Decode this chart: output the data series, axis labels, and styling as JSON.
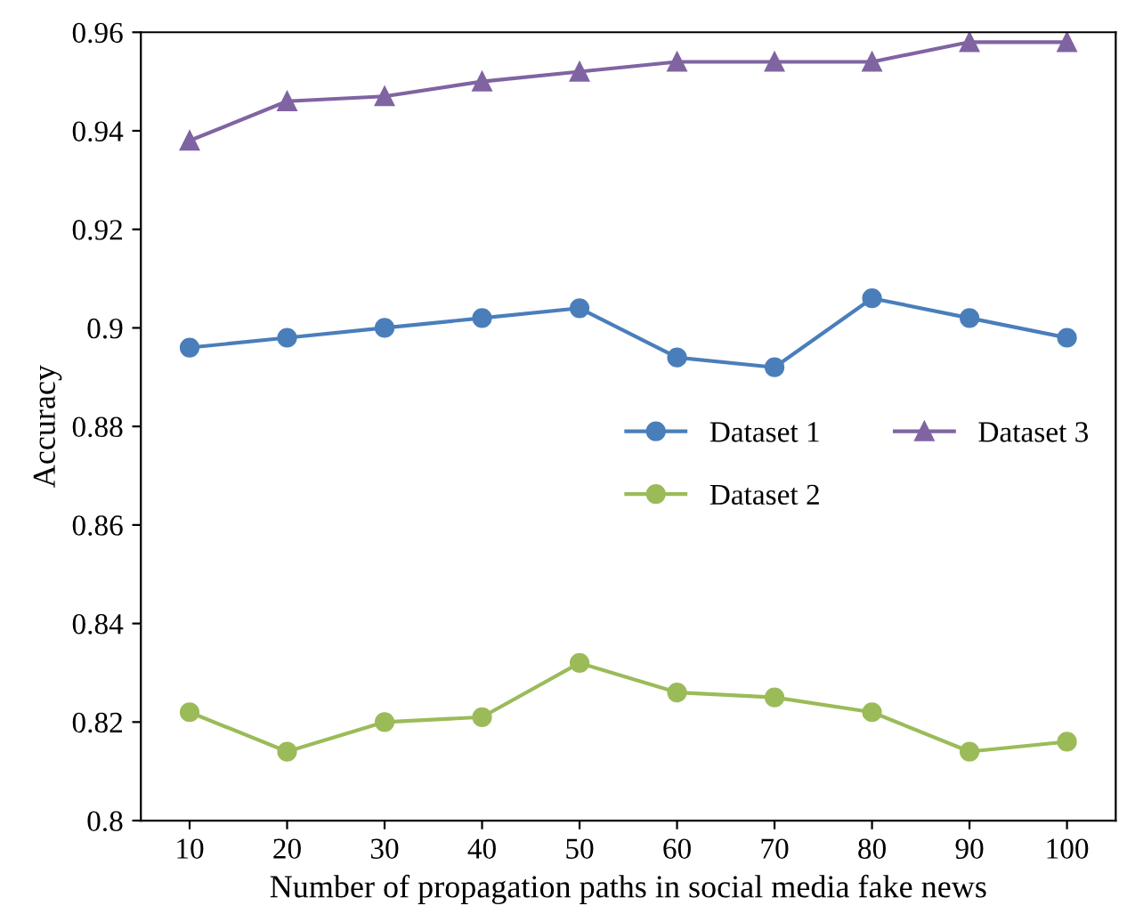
{
  "chart_data": {
    "type": "line",
    "xlabel": "Number of propagation paths in social media fake news",
    "ylabel": "Accuracy",
    "categories": [
      "10",
      "20",
      "30",
      "40",
      "50",
      "60",
      "70",
      "80",
      "90",
      "100"
    ],
    "series": [
      {
        "name": "Dataset 1",
        "color": "#4a7ebb",
        "marker": "circle",
        "values": [
          0.896,
          0.898,
          0.9,
          0.902,
          0.904,
          0.894,
          0.892,
          0.906,
          0.902,
          0.898
        ]
      },
      {
        "name": "Dataset 2",
        "color": "#9bbb59",
        "marker": "circle",
        "values": [
          0.822,
          0.814,
          0.82,
          0.821,
          0.832,
          0.826,
          0.825,
          0.822,
          0.814,
          0.816
        ]
      },
      {
        "name": "Dataset 3",
        "color": "#8064a2",
        "marker": "triangle",
        "values": [
          0.938,
          0.946,
          0.947,
          0.95,
          0.952,
          0.954,
          0.954,
          0.954,
          0.958,
          0.958
        ]
      }
    ],
    "ylim": [
      0.8,
      0.96
    ],
    "yticks": [
      0.8,
      0.82,
      0.84,
      0.86,
      0.88,
      0.9,
      0.92,
      0.94,
      0.96
    ],
    "grid": false,
    "legend": "center right",
    "line_style": "solid"
  }
}
